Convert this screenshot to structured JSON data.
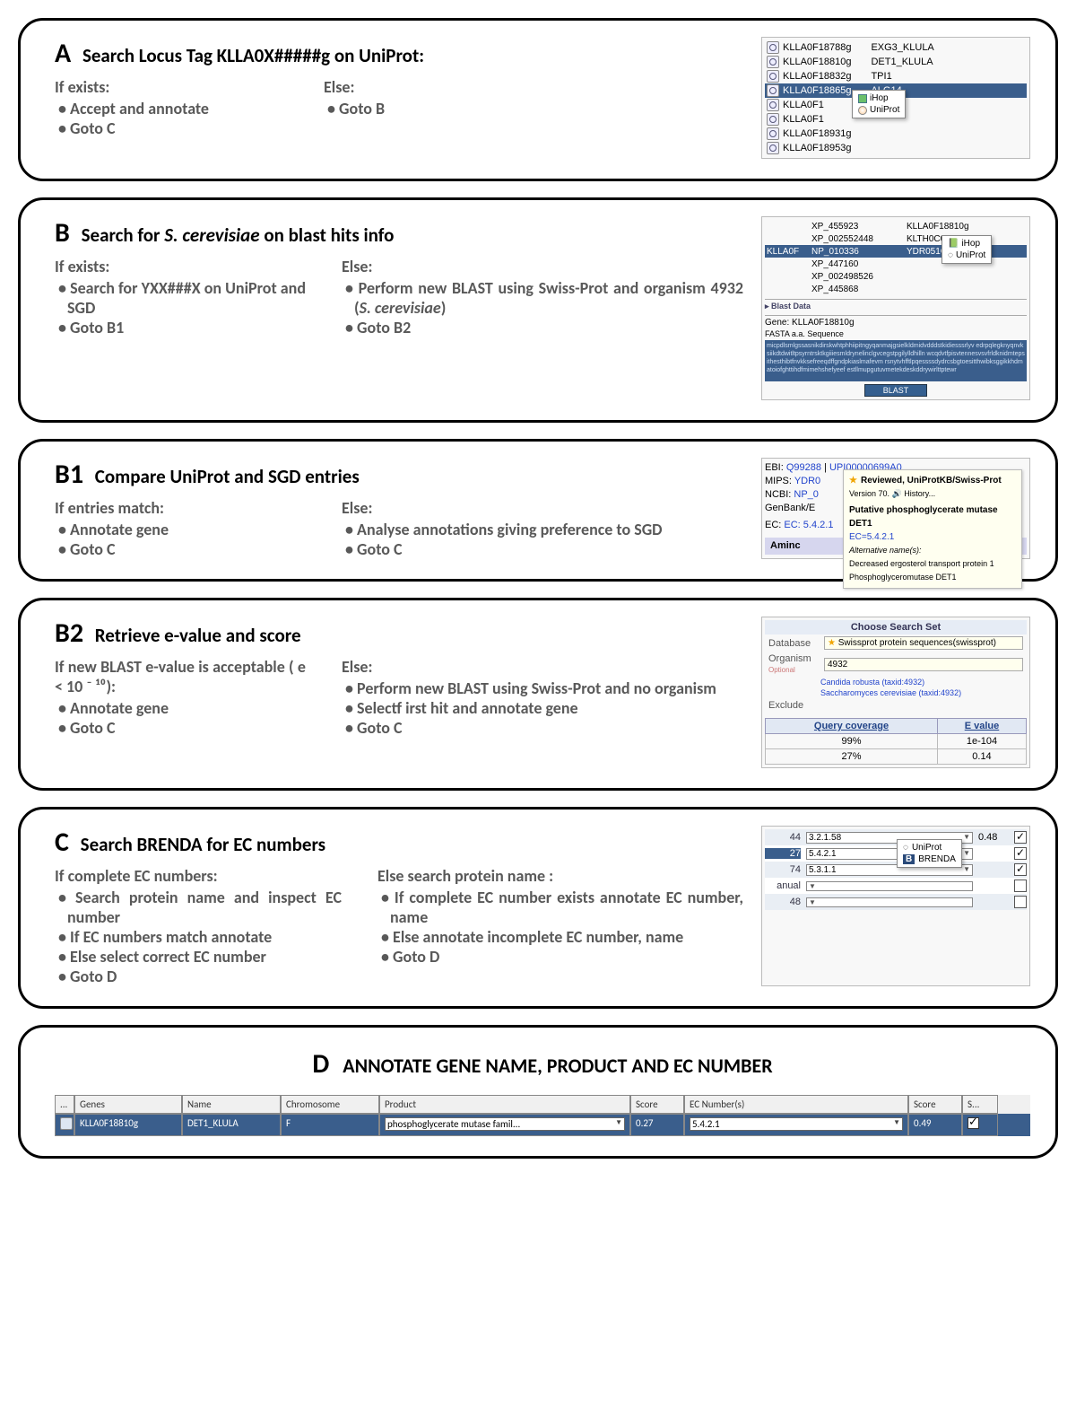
{
  "panels": {
    "A": {
      "title_pre": "Search Locus Tag KLLA0X#####g on UniProt:",
      "left_head": "If exists:",
      "left_items": [
        "Accept and annotate",
        "Goto C"
      ],
      "right_head": "Else:",
      "right_items": [
        "Goto B"
      ],
      "thumb": {
        "rows": [
          {
            "locus": "KLLA0F18788g",
            "name": "EXG3_KLULA"
          },
          {
            "locus": "KLLA0F18810g",
            "name": "DET1_KLULA"
          },
          {
            "locus": "KLLA0F18832g",
            "name": "TPI1"
          },
          {
            "locus": "KLLA0F18865g",
            "name": "ALG14",
            "sel": true
          },
          {
            "locus": "KLLA0F1",
            "name": ""
          },
          {
            "locus": "KLLA0F1",
            "name": ""
          },
          {
            "locus": "KLLA0F18931g",
            "name": ""
          },
          {
            "locus": "KLLA0F18953g",
            "name": ""
          }
        ],
        "popup": [
          "iHop",
          "UniProt"
        ]
      }
    },
    "B": {
      "title": "Search for S. cerevisiae on blast hits info",
      "left_head": "If exists:",
      "left_items": [
        "Search for YXX###X on UniProt and SGD",
        "Goto B1"
      ],
      "right_head": "Else:",
      "right_items": [
        "Perform new BLAST using Swiss-Prot and organism 4932 (S. cerevisiae)",
        "Goto B2"
      ],
      "thumb": {
        "rows": [
          {
            "a": "",
            "b": "XP_455923",
            "c": "KLLA0F18810g"
          },
          {
            "a": "",
            "b": "XP_002552448",
            "c": "KLTH0C05126g"
          },
          {
            "a": "KLLA0F",
            "b": "NP_010336",
            "c": "YDR051C",
            "sel": true
          },
          {
            "a": "",
            "b": "XP_447160",
            "c": ""
          },
          {
            "a": "",
            "b": "XP_002498526",
            "c": ""
          },
          {
            "a": "",
            "b": "XP_445868",
            "c": ""
          }
        ],
        "popup": [
          "iHop",
          "UniProt"
        ],
        "gene": "Gene: KLLA0F18810g",
        "fasta": "FASTA a.a. Sequence",
        "seq": "micpdlsmlgssasnikdirskwhtphhiipitngyqanmajgsielkldmidvdddstkidiesssrlyv edrpqlegknyqnvksiikdtdwitltpsyrntrsktkgiiiesmldrynelinclgvcegstpgilylldhilln wcqdvtfpisvtennesvsvfrldknidmtepsithesthibtfnvkksefreeqdffgndpkiaslmafevm rsnytvhfftlpqessssdydrcsbgtoesitthwibksggikkhdmatoiofghttihdfmimehshefyeef estllmupgutuvmetekdeskddrywirlttptewr",
        "blast": "BLAST"
      }
    },
    "B1": {
      "title": "Compare UniProt and SGD entries",
      "left_head": "If entries match:",
      "left_items": [
        "Annotate gene",
        "Goto C"
      ],
      "right_head": "Else:",
      "right_items": [
        "Analyse annotations giving preference to SGD",
        "Goto C"
      ],
      "thumb": {
        "lines": [
          "EBI: Q99288 | UPI00000699A0",
          "MIPS: YDR0",
          "NCBI: NP_0",
          "GenBank/E"
        ],
        "ec": "EC: 5.4.2.1",
        "aminolbl": "Aminc",
        "tip_hdr": "Reviewed, UniProtKB/Swiss-Prot",
        "tip_ver": "Version 70. 🔊 History...",
        "tip_desc": "Putative phosphoglycerate mutase DET1",
        "tip_ec": "EC=5.4.2.1",
        "tip_alt": "Alternative name(s):",
        "tip_alt1": "Decreased ergosterol transport protein 1",
        "tip_alt2": "Phosphoglyceromutase DET1"
      }
    },
    "B2": {
      "title": "Retrieve e-value and score",
      "left_head": "If new BLAST e-value is acceptable       ( e < 10 ⁻ ¹⁰):",
      "left_items": [
        "Annotate gene",
        "Goto C"
      ],
      "right_head": "Else:",
      "right_items": [
        "Perform new BLAST using Swiss-Prot and no organism",
        "Selectf irst hit and annotate gene",
        "Goto C"
      ],
      "thumb": {
        "header": "Choose Search Set",
        "db_lbl": "Database",
        "db_val": "Swissprot protein sequences(swissprot)",
        "org_lbl": "Organism",
        "org_opt": "Optional",
        "org_val": "4932",
        "sug1": "Candida robusta (taxid:4932)",
        "sug2": "Saccharomyces cerevisiae (taxid:4932)",
        "excl": "Exclude",
        "cols": [
          "Query coverage",
          "E value"
        ],
        "rows": [
          [
            "99%",
            "1e-104"
          ],
          [
            "27%",
            "0.14"
          ]
        ]
      }
    },
    "C": {
      "title": "Search BRENDA for EC numbers",
      "left_head": "If complete EC numbers:",
      "left_items": [
        "Search protein name and inspect EC number",
        "If EC numbers match annotate",
        "Else select correct EC number",
        "Goto D"
      ],
      "right_head": "Else search protein name :",
      "right_items": [
        "If complete EC number exists annotate EC number, name",
        "Else annotate incomplete EC number,   name",
        "Goto D"
      ],
      "thumb": {
        "rows": [
          {
            "n": "44",
            "ec": "3.2.1.58",
            "s": "0.48",
            "chk": true
          },
          {
            "n": "27",
            "ec": "5.4.2.1",
            "s": "",
            "chk": true,
            "sel": true
          },
          {
            "n": "74",
            "ec": "5.3.1.1",
            "s": "",
            "chk": true
          },
          {
            "n": "anual",
            "ec": "",
            "s": "",
            "chk": false
          },
          {
            "n": "48",
            "ec": "",
            "s": "",
            "chk": false
          }
        ],
        "popup": [
          "UniProt",
          "BRENDA"
        ]
      }
    },
    "D": {
      "title": "ANNOTATE GENE NAME, PRODUCT AND EC NUMBER",
      "cols": [
        "...",
        "Genes",
        "Name",
        "Chromosome",
        "Product",
        "Score",
        "EC Number(s)",
        "Score",
        "S..."
      ],
      "row": {
        "gene": "KLLA0F18810g",
        "name": "DET1_KLULA",
        "chr": "F",
        "prod": "phosphoglycerate mutase famil...",
        "sc1": "0.27",
        "ec": "5.4.2.1",
        "sc2": "0.49"
      }
    }
  }
}
